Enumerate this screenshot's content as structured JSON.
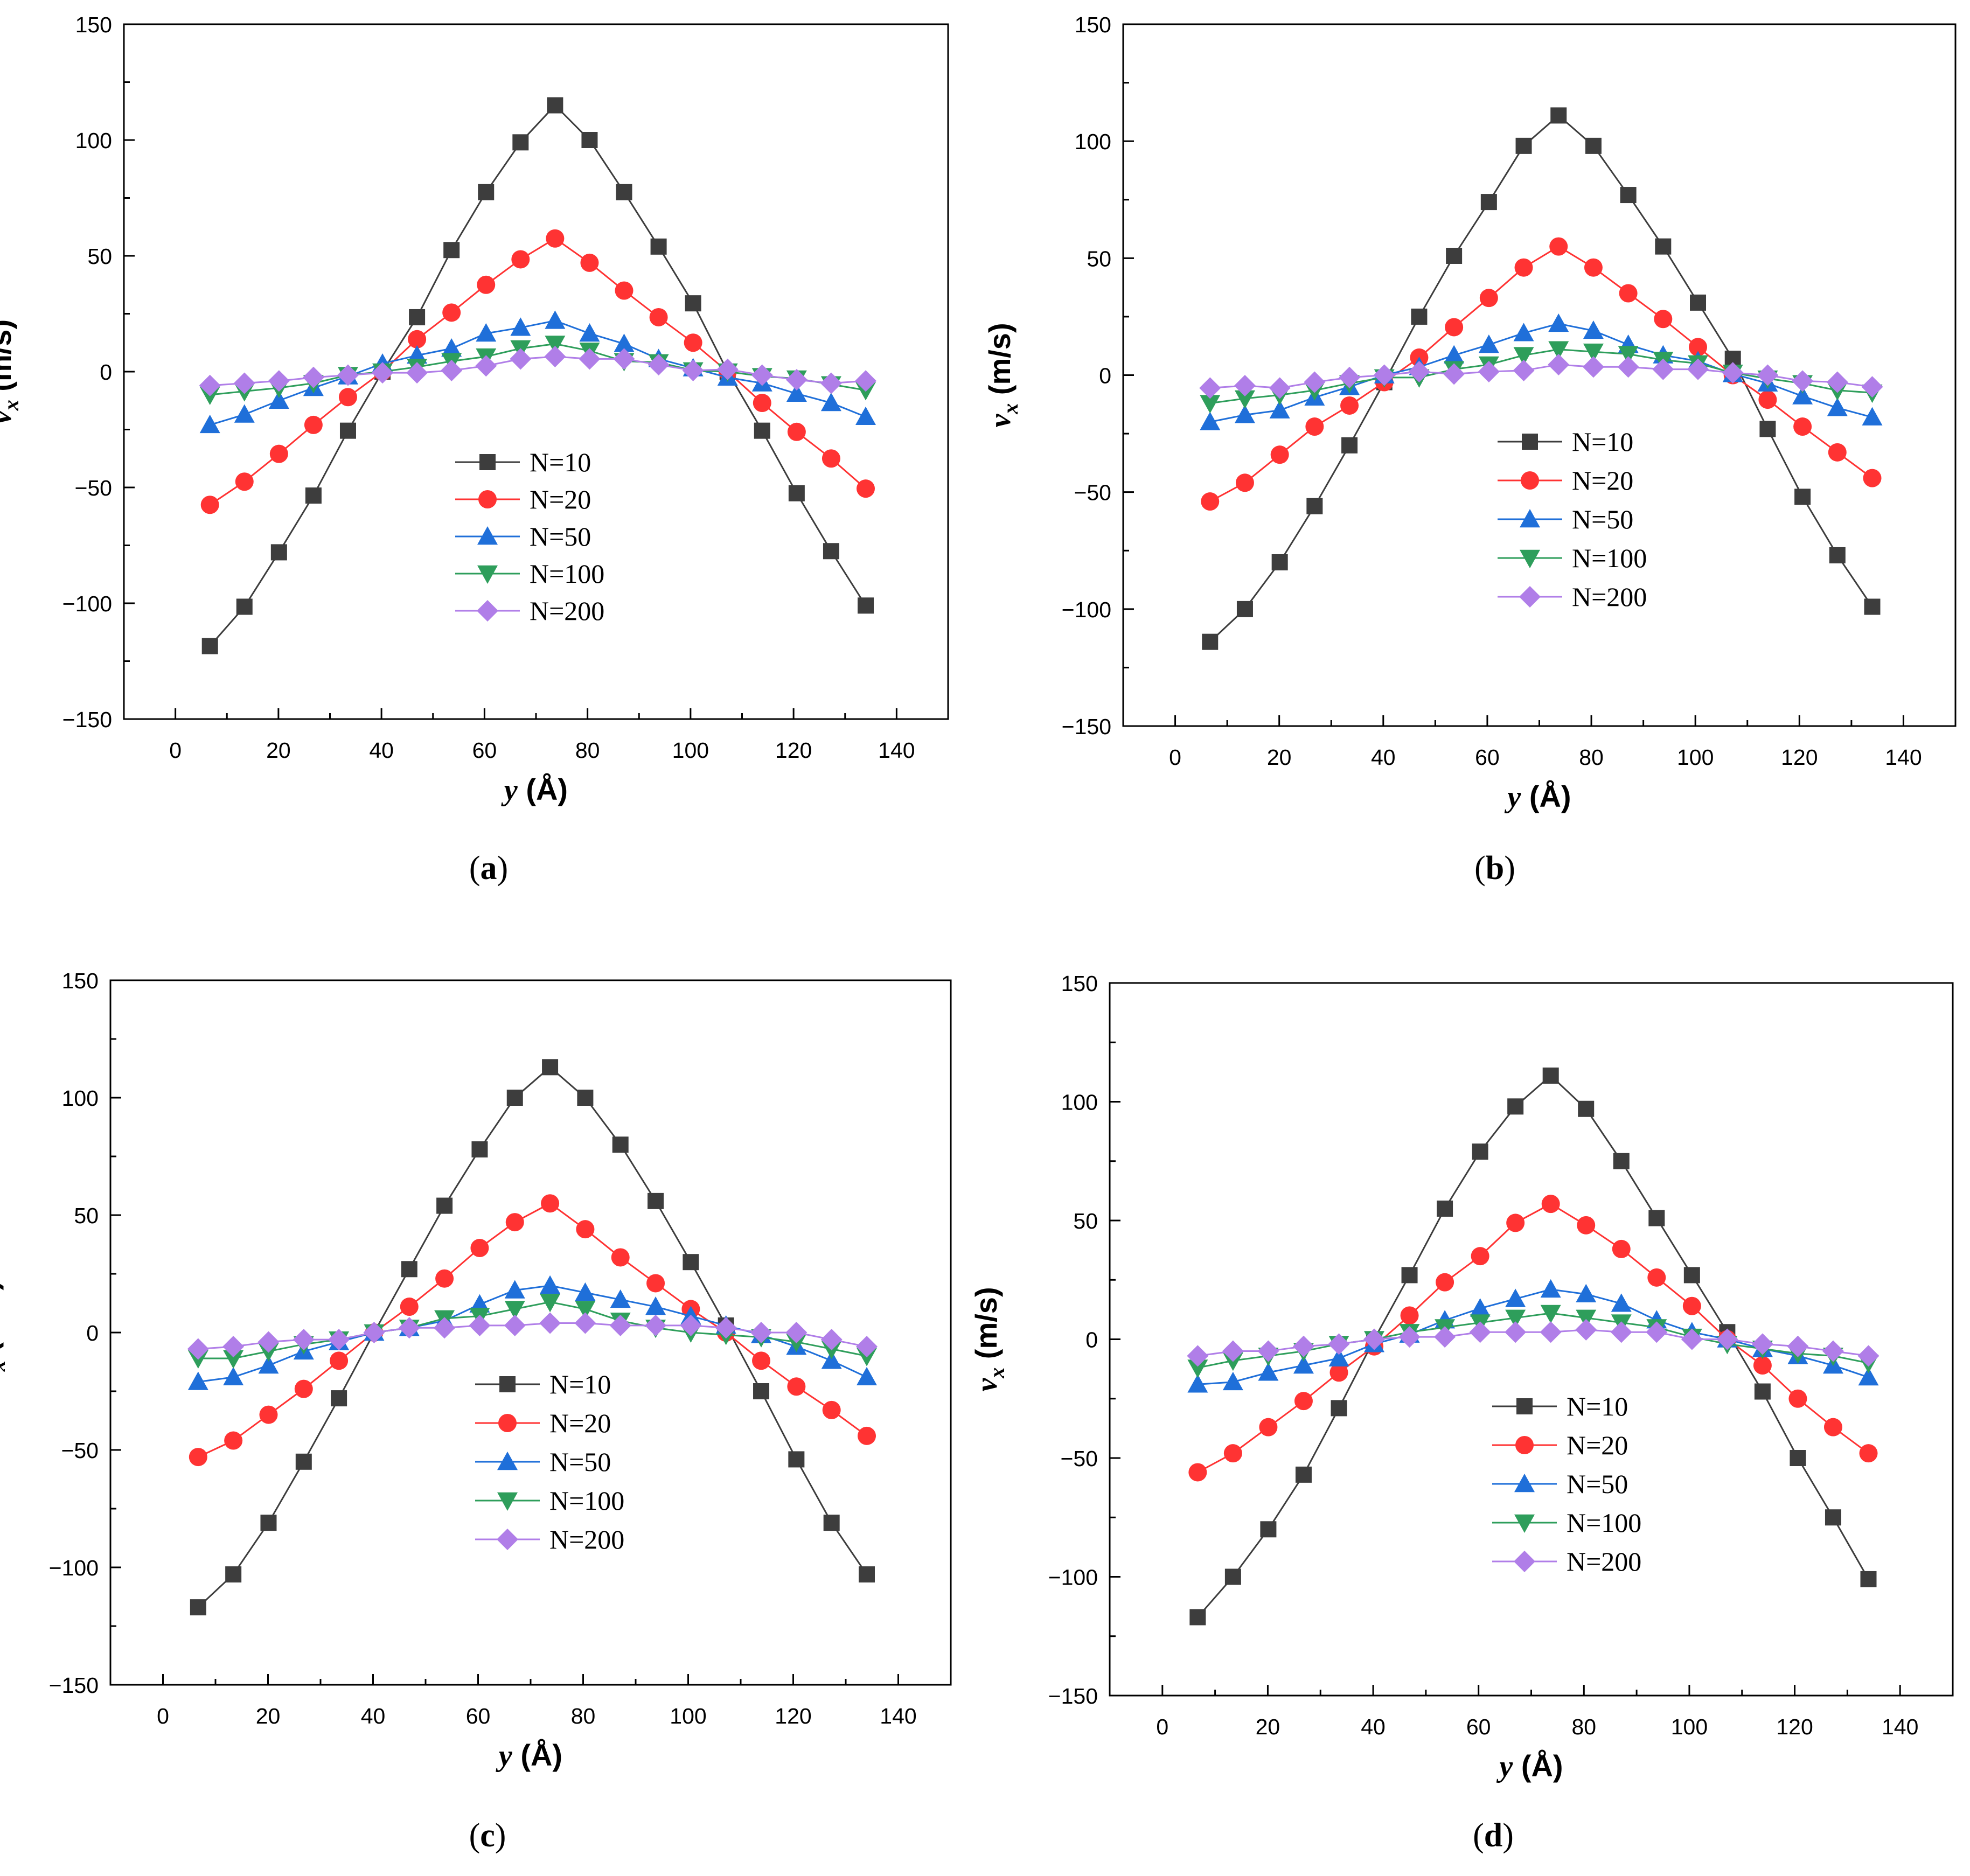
{
  "figure": {
    "panels": [
      "(a)",
      "(b)",
      "(c)",
      "(d)"
    ]
  },
  "chart_data": [
    {
      "type": "line",
      "panel": "a",
      "label_letter": "a",
      "xlabel": "y (Å)",
      "xlabel_var": "y",
      "xlabel_unit": "(Å)",
      "ylabel": "v_x (m/s)",
      "ylabel_var": "v",
      "ylabel_sub": "x",
      "ylabel_unit": "(m/s)",
      "xlim": [
        -10,
        150
      ],
      "ylim": [
        -150,
        150
      ],
      "xticks": [
        0,
        20,
        40,
        60,
        80,
        100,
        120,
        140
      ],
      "yticks": [
        -150,
        -100,
        -50,
        0,
        50,
        100,
        150
      ],
      "xtick_labels": [
        "0",
        "20",
        "40",
        "60",
        "80",
        "100",
        "120",
        "140"
      ],
      "ytick_labels": [
        "−150",
        "−100",
        "−50",
        "0",
        "50",
        "100",
        "150"
      ],
      "legend_position": "center-left",
      "x": [
        6.7,
        13.4,
        20.1,
        26.8,
        33.5,
        40.2,
        46.9,
        53.6,
        60.3,
        67.0,
        73.7,
        80.4,
        87.1,
        93.8,
        100.5,
        107.2,
        113.9,
        120.6,
        127.3,
        134.0
      ],
      "series": [
        {
          "name": "N=10",
          "color": "#3d3d3d",
          "marker": "square",
          "values": [
            -118.5,
            -101.5,
            -78,
            -53.5,
            -25.5,
            0,
            23.5,
            52.5,
            77.5,
            99,
            115,
            100,
            77.5,
            54,
            29.5,
            0,
            -25.5,
            -52.5,
            -77.5,
            -101
          ]
        },
        {
          "name": "N=20",
          "color": "#ff3333",
          "marker": "circle",
          "values": [
            -57.5,
            -47.5,
            -35.5,
            -23,
            -11,
            0,
            14,
            25.5,
            37.5,
            48.5,
            57.5,
            47,
            35,
            23.5,
            12.5,
            0,
            -13.5,
            -26,
            -37.5,
            -50.5
          ]
        },
        {
          "name": "N=50",
          "color": "#1f6fd9",
          "marker": "triangle-up",
          "values": [
            -23,
            -18.5,
            -12.5,
            -7,
            -2,
            3.5,
            7,
            10,
            16.5,
            19,
            22,
            16.5,
            12,
            5.5,
            1.5,
            -2.5,
            -5,
            -9.5,
            -13.5,
            -19.5
          ]
        },
        {
          "name": "N=100",
          "color": "#2e9e5b",
          "marker": "triangle-down",
          "values": [
            -10,
            -8.5,
            -7,
            -5,
            -1.5,
            0,
            2,
            4.5,
            6.5,
            10,
            12,
            9,
            4.5,
            4,
            0.5,
            0,
            -2,
            -3,
            -5.5,
            -8
          ]
        },
        {
          "name": "N=200",
          "color": "#b07ee8",
          "marker": "diamond",
          "values": [
            -6,
            -5,
            -4,
            -2.5,
            -1.5,
            -0.5,
            -0.5,
            0.5,
            2.5,
            5.5,
            6.5,
            5.5,
            5.5,
            3,
            0.5,
            1,
            -1.5,
            -3.5,
            -5,
            -4
          ]
        }
      ]
    },
    {
      "type": "line",
      "panel": "b",
      "label_letter": "b",
      "xlabel": "y (Å)",
      "xlabel_var": "y",
      "xlabel_unit": "(Å)",
      "ylabel": "v_x (m/s)",
      "ylabel_var": "v",
      "ylabel_sub": "x",
      "ylabel_unit": "(m/s)",
      "xlim": [
        -10,
        150
      ],
      "ylim": [
        -150,
        150
      ],
      "xticks": [
        0,
        20,
        40,
        60,
        80,
        100,
        120,
        140
      ],
      "yticks": [
        -150,
        -100,
        -50,
        0,
        50,
        100,
        150
      ],
      "xtick_labels": [
        "0",
        "20",
        "40",
        "60",
        "80",
        "100",
        "120",
        "140"
      ],
      "ytick_labels": [
        "−150",
        "−100",
        "−50",
        "0",
        "50",
        "100",
        "150"
      ],
      "legend_position": "upper-center-left",
      "x": [
        6.7,
        13.4,
        20.1,
        26.8,
        33.5,
        40.2,
        46.9,
        53.6,
        60.3,
        67.0,
        73.7,
        80.4,
        87.1,
        93.8,
        100.5,
        107.2,
        113.9,
        120.6,
        127.3,
        134.0
      ],
      "series": [
        {
          "name": "N=10",
          "color": "#3d3d3d",
          "marker": "square",
          "values": [
            -114,
            -100,
            -80,
            -56,
            -30,
            -3,
            25,
            51,
            74,
            98,
            111,
            98,
            77,
            55,
            31,
            7,
            -23,
            -52,
            -77,
            -99
          ]
        },
        {
          "name": "N=20",
          "color": "#ff3333",
          "marker": "circle",
          "values": [
            -54,
            -46,
            -34,
            -22,
            -13,
            -3,
            7.5,
            20.5,
            33,
            46,
            55,
            46,
            35,
            24,
            12,
            0,
            -10.5,
            -22,
            -33,
            -44
          ]
        },
        {
          "name": "N=50",
          "color": "#1f6fd9",
          "marker": "triangle-up",
          "values": [
            -20,
            -17,
            -15,
            -9.5,
            -5,
            0,
            3.5,
            8.5,
            13,
            18,
            22,
            19,
            13,
            8.5,
            6,
            0.5,
            -3.5,
            -9,
            -14,
            -18
          ]
        },
        {
          "name": "N=100",
          "color": "#2e9e5b",
          "marker": "triangle-down",
          "values": [
            -12,
            -10,
            -8.5,
            -6.5,
            -3.5,
            -1,
            -1,
            2.5,
            4.5,
            8.5,
            11,
            10,
            9,
            6.5,
            5,
            1,
            -1.5,
            -3.5,
            -6.5,
            -7.5
          ]
        },
        {
          "name": "N=200",
          "color": "#b07ee8",
          "marker": "diamond",
          "values": [
            -5.5,
            -4.5,
            -5.5,
            -3,
            -1,
            0,
            1.5,
            0.5,
            1.5,
            2,
            4.5,
            3.5,
            3.5,
            2.5,
            2.5,
            1,
            0,
            -2.5,
            -3,
            -5
          ]
        }
      ]
    },
    {
      "type": "line",
      "panel": "c",
      "label_letter": "c",
      "xlabel": "y (Å)",
      "xlabel_var": "y",
      "xlabel_unit": "(Å)",
      "ylabel": "v_x (m/s)",
      "ylabel_var": "v",
      "ylabel_sub": "x",
      "ylabel_unit": "(m/s)",
      "xlim": [
        -10,
        150
      ],
      "ylim": [
        -150,
        150
      ],
      "xticks": [
        0,
        20,
        40,
        60,
        80,
        100,
        120,
        140
      ],
      "yticks": [
        -150,
        -100,
        -50,
        0,
        50,
        100,
        150
      ],
      "xtick_labels": [
        "0",
        "20",
        "40",
        "60",
        "80",
        "100",
        "120",
        "140"
      ],
      "ytick_labels": [
        "−150",
        "−100",
        "−50",
        "0",
        "50",
        "100",
        "150"
      ],
      "legend_position": "center",
      "x": [
        6.7,
        13.4,
        20.1,
        26.8,
        33.5,
        40.2,
        46.9,
        53.6,
        60.3,
        67.0,
        73.7,
        80.4,
        87.1,
        93.8,
        100.5,
        107.2,
        113.9,
        120.6,
        127.3,
        134.0
      ],
      "series": [
        {
          "name": "N=10",
          "color": "#3d3d3d",
          "marker": "square",
          "values": [
            -117,
            -103,
            -81,
            -55,
            -28,
            0,
            27,
            54,
            78,
            100,
            113,
            100,
            80,
            56,
            30,
            3,
            -25,
            -54,
            -81,
            -103
          ]
        },
        {
          "name": "N=20",
          "color": "#ff3333",
          "marker": "circle",
          "values": [
            -53,
            -46,
            -35,
            -24,
            -12,
            0,
            11,
            23,
            36,
            47,
            55,
            44,
            32,
            21,
            10,
            0,
            -12,
            -23,
            -33,
            -44
          ]
        },
        {
          "name": "N=50",
          "color": "#1f6fd9",
          "marker": "triangle-up",
          "values": [
            -21,
            -19,
            -14,
            -8,
            -4,
            0,
            2,
            5,
            12,
            18,
            20,
            17,
            14,
            11,
            7,
            3,
            -1,
            -6,
            -12,
            -19
          ]
        },
        {
          "name": "N=100",
          "color": "#2e9e5b",
          "marker": "triangle-down",
          "values": [
            -11,
            -11,
            -8,
            -5,
            -3,
            0,
            2,
            6,
            7,
            10,
            13,
            10,
            5,
            2,
            0,
            -1,
            -2,
            -4,
            -7,
            -10
          ]
        },
        {
          "name": "N=200",
          "color": "#b07ee8",
          "marker": "diamond",
          "values": [
            -7,
            -6,
            -4,
            -3,
            -3,
            0,
            2,
            2,
            3,
            3,
            4,
            4,
            3,
            3,
            3,
            2,
            0,
            0,
            -3,
            -6
          ]
        }
      ]
    },
    {
      "type": "line",
      "panel": "d",
      "label_letter": "d",
      "xlabel": "y (Å)",
      "xlabel_var": "y",
      "xlabel_unit": "(Å)",
      "ylabel": "v_x (m/s)",
      "ylabel_var": "v",
      "ylabel_sub": "x",
      "ylabel_unit": "(m/s)",
      "xlim": [
        -10,
        150
      ],
      "ylim": [
        -150,
        150
      ],
      "xticks": [
        0,
        20,
        40,
        60,
        80,
        100,
        120,
        140
      ],
      "yticks": [
        -150,
        -100,
        -50,
        0,
        50,
        100,
        150
      ],
      "xtick_labels": [
        "0",
        "20",
        "40",
        "60",
        "80",
        "100",
        "120",
        "140"
      ],
      "ytick_labels": [
        "−150",
        "−100",
        "−50",
        "0",
        "50",
        "100",
        "150"
      ],
      "legend_position": "center",
      "x": [
        6.7,
        13.4,
        20.1,
        26.8,
        33.5,
        40.2,
        46.9,
        53.6,
        60.3,
        67.0,
        73.7,
        80.4,
        87.1,
        93.8,
        100.5,
        107.2,
        113.9,
        120.6,
        127.3,
        134.0
      ],
      "series": [
        {
          "name": "N=10",
          "color": "#3d3d3d",
          "marker": "square",
          "values": [
            -117,
            -100,
            -80,
            -57,
            -29,
            0,
            27,
            55,
            79,
            98,
            111,
            97,
            75,
            51,
            27,
            3,
            -22,
            -50,
            -75,
            -101
          ]
        },
        {
          "name": "N=20",
          "color": "#ff3333",
          "marker": "circle",
          "values": [
            -56,
            -48,
            -37,
            -26,
            -14,
            -3,
            10,
            24,
            35,
            49,
            57,
            48,
            38,
            26,
            14,
            0,
            -11,
            -25,
            -37,
            -48
          ]
        },
        {
          "name": "N=50",
          "color": "#1f6fd9",
          "marker": "triangle-up",
          "values": [
            -19,
            -18,
            -14,
            -11,
            -8,
            -2,
            2,
            8,
            13,
            17,
            21,
            19,
            15,
            8,
            3,
            0,
            -4,
            -7,
            -11,
            -16
          ]
        },
        {
          "name": "N=100",
          "color": "#2e9e5b",
          "marker": "triangle-down",
          "values": [
            -12,
            -9,
            -7,
            -5,
            -2,
            0,
            3,
            5,
            7,
            9,
            11,
            9,
            7,
            5,
            1,
            -2,
            -4,
            -6,
            -7,
            -10
          ]
        },
        {
          "name": "N=200",
          "color": "#b07ee8",
          "marker": "diamond",
          "values": [
            -7,
            -5,
            -5,
            -3,
            -2,
            0,
            1,
            1,
            3,
            3,
            3,
            4,
            3,
            3,
            0,
            0,
            -2,
            -3,
            -5,
            -7
          ]
        }
      ]
    }
  ]
}
